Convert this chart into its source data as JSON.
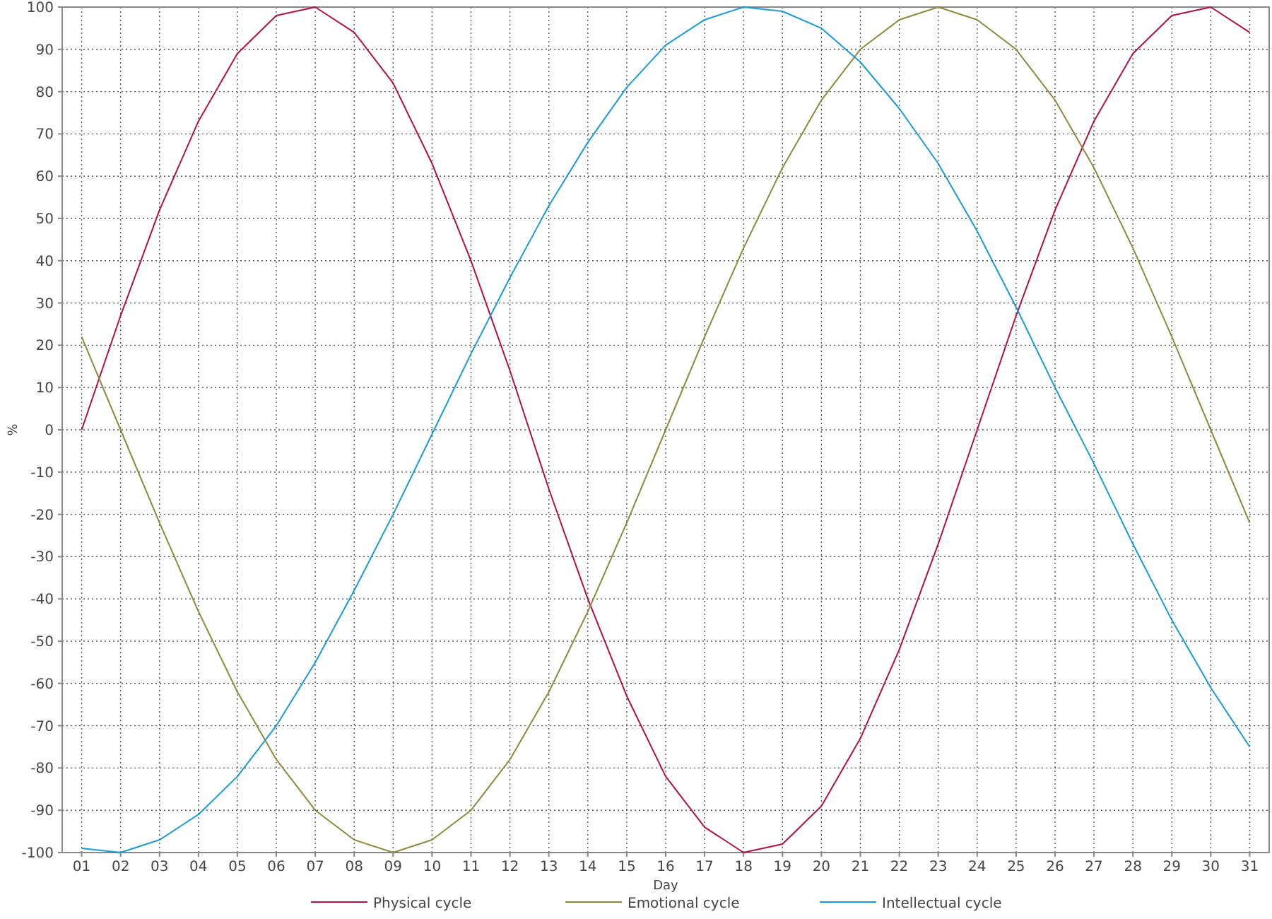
{
  "chart_data": {
    "type": "line",
    "xlabel": "Day",
    "ylabel": "%",
    "categories": [
      "01",
      "02",
      "03",
      "04",
      "05",
      "06",
      "07",
      "08",
      "09",
      "10",
      "11",
      "12",
      "13",
      "14",
      "15",
      "16",
      "17",
      "18",
      "19",
      "20",
      "21",
      "22",
      "23",
      "24",
      "25",
      "26",
      "27",
      "28",
      "29",
      "30",
      "31"
    ],
    "series": [
      {
        "name": "Physical cycle",
        "color": "#b0104a",
        "values": [
          0,
          27,
          52,
          73,
          89,
          98,
          100,
          94,
          82,
          63,
          40,
          14,
          -14,
          -40,
          -63,
          -82,
          -94,
          -100,
          -98,
          -89,
          -73,
          -52,
          -27,
          0,
          27,
          52,
          73,
          89,
          98,
          100,
          94
        ]
      },
      {
        "name": "Emotional cycle",
        "color": "#8c8a3c",
        "values": [
          22,
          0,
          -22,
          -43,
          -62,
          -78,
          -90,
          -97,
          -100,
          -97,
          -90,
          -78,
          -62,
          -43,
          -22,
          0,
          22,
          43,
          62,
          78,
          90,
          97,
          100,
          97,
          90,
          78,
          62,
          43,
          22,
          0,
          -22
        ]
      },
      {
        "name": "Intellectual cycle",
        "color": "#1a9ad6",
        "values": [
          -99,
          -100,
          -97,
          -91,
          -82,
          -70,
          -55,
          -38,
          -20,
          -1,
          18,
          36,
          53,
          68,
          81,
          91,
          97,
          100,
          99,
          95,
          87,
          76,
          63,
          47,
          29,
          10,
          -8,
          -27,
          -45,
          -61,
          -75
        ]
      }
    ],
    "ylim": [
      -100,
      100
    ],
    "yticks": [
      -100,
      -90,
      -80,
      -70,
      -60,
      -50,
      -40,
      -30,
      -20,
      -10,
      0,
      10,
      20,
      30,
      40,
      50,
      60,
      70,
      80,
      90,
      100
    ],
    "grid": true,
    "legend": "bottom",
    "marker": "none",
    "line_style": "solid"
  }
}
